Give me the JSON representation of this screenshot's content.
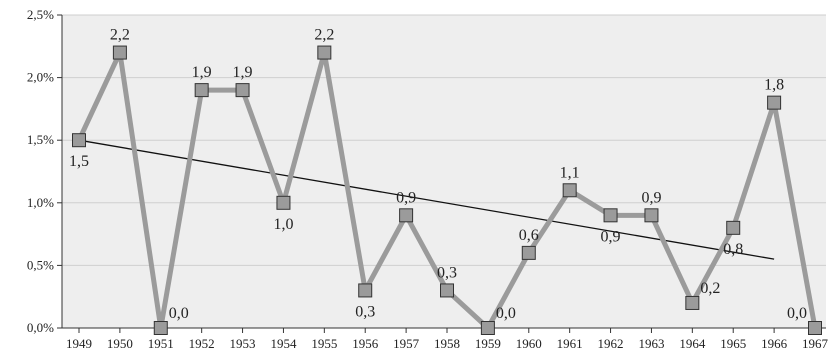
{
  "chart_data": {
    "type": "line",
    "title": "",
    "xlabel": "",
    "ylabel": "",
    "categories": [
      "1949",
      "1950",
      "1951",
      "1952",
      "1953",
      "1954",
      "1955",
      "1956",
      "1957",
      "1958",
      "1959",
      "1960",
      "1961",
      "1962",
      "1963",
      "1964",
      "1965",
      "1966",
      "1967"
    ],
    "y_tick_labels": [
      "0,0%",
      "0,5%",
      "1,0%",
      "1,5%",
      "2,0%",
      "2,5%"
    ],
    "ylim": [
      0,
      2.5
    ],
    "grid": true,
    "series": [
      {
        "values": [
          1.5,
          2.2,
          0.0,
          1.9,
          1.9,
          1.0,
          2.2,
          0.3,
          0.9,
          0.3,
          0.0,
          0.6,
          1.1,
          0.9,
          0.9,
          0.2,
          0.8,
          1.8,
          0.0
        ],
        "data_labels": [
          "1,5",
          "2,2",
          "0,0",
          "1,9",
          "1,9",
          "1,0",
          "2,2",
          "0,3",
          "0,9",
          "0,3",
          "0,0",
          "0,6",
          "1,1",
          "0,9",
          "0,9",
          "0,2",
          "0,8",
          "1,8",
          "0,0"
        ],
        "line_color": "#9b9b9b",
        "marker_color": "#9b9b9b"
      }
    ],
    "trendline": {
      "type": "linear",
      "start": 1.5,
      "end": 0.55,
      "color": "#111111"
    },
    "plot_background": "#eeeeee",
    "gridline_color": "#cfcfcf",
    "legend": "none"
  }
}
